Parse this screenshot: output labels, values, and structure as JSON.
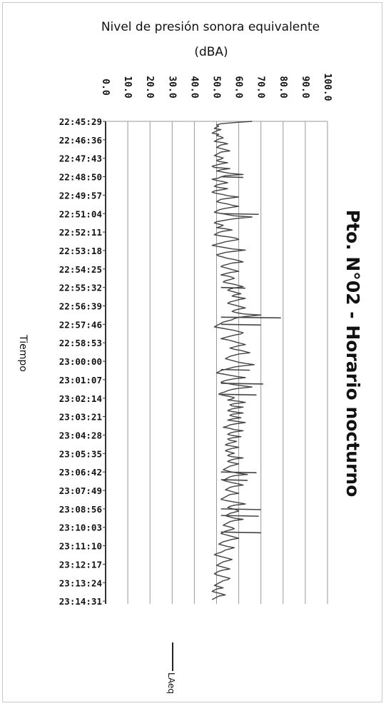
{
  "chart_data": {
    "type": "line",
    "title": "Pto. N°02 - Horario nocturno",
    "ylabel_line1": "Nivel de presión sonora equivalente",
    "ylabel_line2": "(dBA)",
    "xlabel": "Tiempo",
    "ylim": [
      0,
      100
    ],
    "y_ticks": [
      "0.0",
      "10.0",
      "20.0",
      "30.0",
      "40.0",
      "50.0",
      "60.0",
      "70.0",
      "80.0",
      "90.0",
      "100.0"
    ],
    "x_ticks": [
      "22:45:29",
      "22:46:36",
      "22:47:43",
      "22:48:50",
      "22:49:57",
      "22:51:04",
      "22:52:11",
      "22:53:18",
      "22:54:25",
      "22:55:32",
      "22:56:39",
      "22:57:46",
      "22:58:53",
      "23:00:00",
      "23:01:07",
      "23:02:14",
      "23:03:21",
      "23:04:28",
      "23:05:35",
      "23:06:42",
      "23:07:49",
      "23:08:56",
      "23:10:03",
      "23:11:10",
      "23:12:17",
      "23:13:24",
      "23:14:31"
    ],
    "grid": true,
    "legend_position": "bottom",
    "series": [
      {
        "name": "LAeq",
        "color": "#444444",
        "values": [
          66,
          58,
          52,
          50,
          51,
          50,
          49,
          52,
          50,
          49,
          48,
          51,
          50,
          52,
          53,
          51,
          50,
          49,
          53,
          55,
          52,
          51,
          50,
          52,
          54,
          56,
          52,
          51,
          50,
          49,
          51,
          53,
          52,
          50,
          51,
          55,
          52,
          50,
          48,
          49,
          56,
          52,
          50,
          53,
          56,
          62,
          54,
          52,
          51,
          48,
          50,
          53,
          55,
          52,
          50,
          49,
          51,
          55,
          52,
          49,
          48,
          50,
          53,
          55,
          60,
          56,
          52,
          51,
          50,
          52,
          55,
          57,
          60,
          56,
          53,
          51,
          50,
          49,
          52,
          55,
          58,
          66,
          60,
          56,
          53,
          50,
          49,
          51,
          53,
          52,
          50,
          54,
          57,
          53,
          51,
          50,
          49,
          52,
          56,
          59,
          60,
          57,
          54,
          52,
          50,
          48,
          51,
          54,
          57,
          63,
          58,
          54,
          52,
          50,
          51,
          53,
          55,
          58,
          60,
          62,
          57,
          55,
          53,
          52,
          54,
          56,
          58,
          60,
          56,
          54,
          52,
          55,
          57,
          58,
          56,
          54,
          53,
          55,
          58,
          60,
          62,
          58,
          56,
          55,
          57,
          59,
          61,
          58,
          57,
          60,
          63,
          60,
          58,
          56,
          55,
          57,
          59,
          61,
          63,
          60,
          58,
          57,
          59,
          62,
          70,
          64,
          60,
          58,
          57,
          55,
          53,
          52,
          51,
          50,
          49,
          52,
          55,
          58,
          60,
          62,
          61,
          58,
          56,
          54,
          52,
          55,
          57,
          59,
          61,
          63,
          60,
          58,
          56,
          58,
          61,
          63,
          65,
          60,
          58,
          56,
          55,
          54,
          56,
          58,
          60,
          63,
          67,
          62,
          58,
          56,
          54,
          52,
          51,
          50,
          53,
          56,
          59,
          63,
          58,
          55,
          53,
          52,
          55,
          58,
          62,
          66,
          60,
          57,
          55,
          54,
          52,
          51,
          53,
          56,
          58,
          57,
          55,
          60,
          63,
          58,
          56,
          57,
          62,
          58,
          56,
          55,
          58,
          62,
          57,
          56,
          58,
          61,
          57,
          55,
          59,
          63,
          59,
          56,
          55,
          53,
          56,
          58,
          62,
          58,
          56,
          55,
          57,
          61,
          57,
          55,
          56,
          59,
          57,
          55,
          54,
          57,
          60,
          57,
          55,
          54,
          56,
          58,
          56,
          55,
          57,
          62,
          58,
          56,
          55,
          57,
          60,
          58,
          56,
          55,
          54,
          53,
          55,
          57,
          60,
          64,
          58,
          56,
          55,
          54,
          53,
          55,
          57,
          60,
          62,
          58,
          56,
          55,
          54,
          56,
          58,
          60,
          56,
          55,
          54,
          53,
          52,
          54,
          57,
          60,
          63,
          58,
          56,
          55,
          57,
          59,
          60,
          58,
          56,
          55,
          54,
          56,
          58,
          62,
          58,
          56,
          55,
          54,
          53,
          55,
          57,
          58,
          56,
          54,
          53,
          52,
          54,
          56,
          58,
          60,
          57,
          55,
          53,
          52,
          51,
          53,
          55,
          58,
          56,
          54,
          53,
          52,
          50,
          49,
          51,
          53,
          55,
          57,
          55,
          53,
          52,
          51,
          50,
          52,
          54,
          56,
          53,
          51,
          50,
          49,
          50,
          52,
          54,
          56,
          55,
          53,
          52,
          51,
          50,
          49,
          51,
          53,
          50,
          49,
          48,
          50,
          52,
          54,
          51,
          50,
          49,
          48
        ]
      }
    ],
    "spikes": [
      {
        "time": "22:48:50",
        "value": 62
      },
      {
        "time": "22:51:04",
        "value": 69
      },
      {
        "time": "22:55:32",
        "value": 63
      },
      {
        "time": "22:57:20",
        "value": 79
      },
      {
        "time": "22:57:46",
        "value": 70
      },
      {
        "time": "23:00:30",
        "value": 65
      },
      {
        "time": "23:01:20",
        "value": 71
      },
      {
        "time": "23:02:00",
        "value": 68
      },
      {
        "time": "23:06:42",
        "value": 68
      },
      {
        "time": "23:07:10",
        "value": 64
      },
      {
        "time": "23:08:56",
        "value": 70
      },
      {
        "time": "23:09:20",
        "value": 69
      },
      {
        "time": "23:10:20",
        "value": 70
      }
    ]
  }
}
